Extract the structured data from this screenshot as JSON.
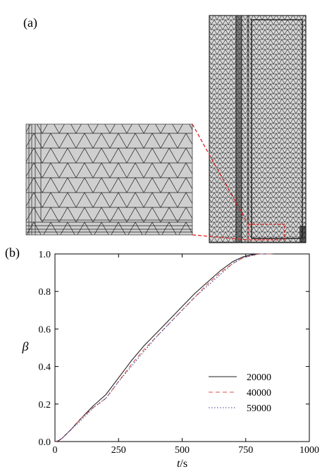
{
  "panel_a": {
    "label": "(a)"
  },
  "panel_b": {
    "label": "(b)"
  },
  "chart_data": {
    "type": "line",
    "xlabel_var": "t",
    "xlabel_unit": "/s",
    "ylabel": "β",
    "xlim": [
      0,
      1000
    ],
    "ylim": [
      0,
      1.0
    ],
    "xticks": [
      "0",
      "250",
      "500",
      "750",
      "1000"
    ],
    "yticks": [
      "0.0",
      "0.2",
      "0.4",
      "0.6",
      "0.8",
      "1.0"
    ],
    "grid": false,
    "legend_position": "bottom-right",
    "series": [
      {
        "name": "20000",
        "style": "solid",
        "color": "#222222",
        "x": [
          0,
          15,
          30,
          60,
          100,
          150,
          200,
          250,
          300,
          350,
          400,
          450,
          500,
          550,
          600,
          650,
          700,
          740,
          770,
          800,
          830,
          860
        ],
        "y": [
          0,
          0.005,
          0.02,
          0.06,
          0.12,
          0.19,
          0.25,
          0.34,
          0.43,
          0.51,
          0.58,
          0.65,
          0.72,
          0.79,
          0.85,
          0.91,
          0.96,
          0.985,
          0.995,
          1.0,
          1.0,
          1.0
        ]
      },
      {
        "name": "40000",
        "style": "dashed",
        "color": "#d9534f",
        "x": [
          0,
          15,
          30,
          60,
          100,
          150,
          200,
          250,
          300,
          350,
          400,
          450,
          500,
          550,
          600,
          650,
          700,
          740,
          770,
          800,
          830,
          860
        ],
        "y": [
          0,
          0.005,
          0.02,
          0.06,
          0.12,
          0.18,
          0.23,
          0.32,
          0.41,
          0.49,
          0.56,
          0.63,
          0.7,
          0.77,
          0.84,
          0.9,
          0.95,
          0.98,
          0.99,
          1.0,
          1.0,
          1.0
        ]
      },
      {
        "name": "59000",
        "style": "dotted",
        "color": "#3a3a8c",
        "x": [
          0,
          15,
          30,
          60,
          100,
          150,
          200,
          250,
          300,
          350,
          400,
          450,
          500,
          550,
          600,
          650,
          700,
          740,
          770,
          800,
          830,
          860
        ],
        "y": [
          0,
          0.005,
          0.02,
          0.06,
          0.11,
          0.18,
          0.23,
          0.32,
          0.4,
          0.48,
          0.56,
          0.63,
          0.7,
          0.77,
          0.83,
          0.89,
          0.95,
          0.98,
          0.99,
          1.0,
          1.0,
          1.0
        ]
      }
    ]
  }
}
